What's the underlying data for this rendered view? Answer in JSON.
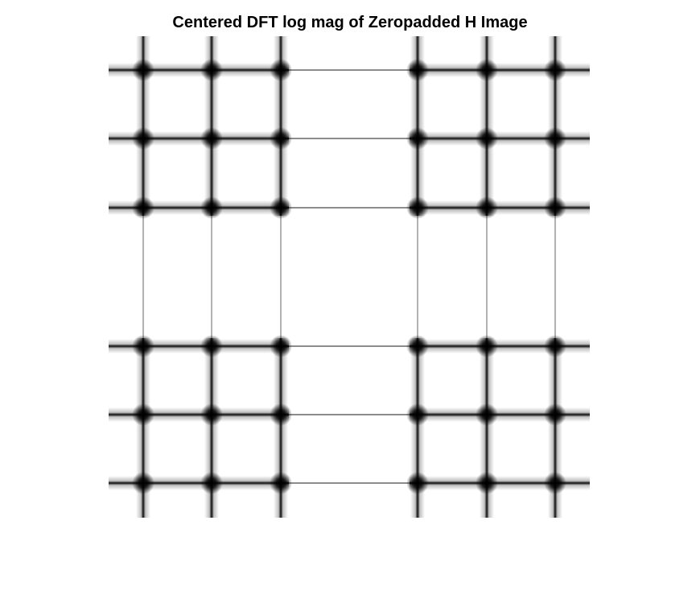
{
  "figure": {
    "title": "Centered DFT log mag of Zeropadded H Image"
  },
  "image": {
    "description_colormap": "gray",
    "background_color": "#ffffff",
    "feature_color": "#000000"
  }
}
